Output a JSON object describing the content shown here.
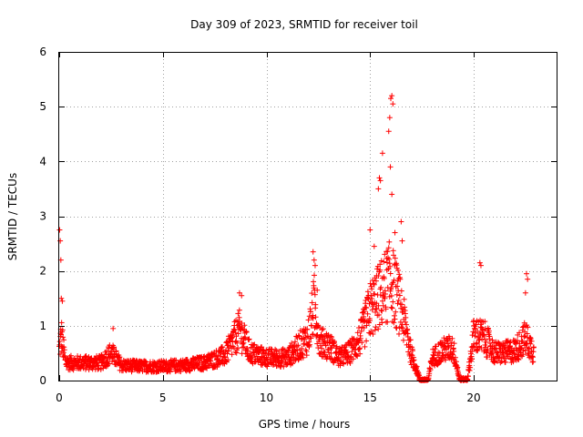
{
  "chart_data": {
    "type": "scatter",
    "title": "Day 309 of 2023, SRMTID for receiver toil",
    "xlabel": "GPS time / hours",
    "ylabel": "SRMTID / TECUs",
    "xlim": [
      0,
      24
    ],
    "ylim": [
      0,
      6
    ],
    "x_ticks": [
      {
        "value": 0,
        "label": "0"
      },
      {
        "value": 5,
        "label": "5"
      },
      {
        "value": 10,
        "label": "10"
      },
      {
        "value": 15,
        "label": "15"
      },
      {
        "value": 20,
        "label": "20"
      }
    ],
    "y_ticks": [
      {
        "value": 0,
        "label": "0"
      },
      {
        "value": 1,
        "label": "1"
      },
      {
        "value": 2,
        "label": "2"
      },
      {
        "value": 3,
        "label": "3"
      },
      {
        "value": 4,
        "label": "4"
      },
      {
        "value": 5,
        "label": "5"
      },
      {
        "value": 6,
        "label": "6"
      }
    ],
    "grid": true,
    "marker": "+",
    "marker_color": "#ff0000",
    "series": [
      {
        "name": "SRMTID",
        "profile": [
          [
            0.0,
            0.6
          ],
          [
            0.1,
            0.9
          ],
          [
            0.3,
            0.35
          ],
          [
            1.0,
            0.35
          ],
          [
            2.0,
            0.35
          ],
          [
            2.5,
            0.55
          ],
          [
            3.0,
            0.3
          ],
          [
            4.0,
            0.28
          ],
          [
            5.0,
            0.28
          ],
          [
            6.0,
            0.3
          ],
          [
            7.0,
            0.35
          ],
          [
            8.0,
            0.5
          ],
          [
            8.7,
            1.0
          ],
          [
            9.2,
            0.55
          ],
          [
            10.0,
            0.45
          ],
          [
            11.0,
            0.45
          ],
          [
            11.5,
            0.65
          ],
          [
            12.0,
            0.85
          ],
          [
            12.3,
            1.5
          ],
          [
            12.6,
            0.75
          ],
          [
            13.0,
            0.7
          ],
          [
            13.5,
            0.45
          ],
          [
            14.0,
            0.55
          ],
          [
            14.5,
            0.8
          ],
          [
            15.0,
            1.4
          ],
          [
            15.5,
            1.7
          ],
          [
            16.0,
            2.0
          ],
          [
            16.5,
            1.4
          ],
          [
            17.0,
            0.5
          ],
          [
            17.4,
            0.03
          ],
          [
            17.8,
            0.03
          ],
          [
            18.0,
            0.45
          ],
          [
            18.5,
            0.6
          ],
          [
            19.0,
            0.65
          ],
          [
            19.3,
            0.05
          ],
          [
            19.7,
            0.05
          ],
          [
            20.0,
            0.9
          ],
          [
            20.5,
            0.85
          ],
          [
            21.0,
            0.55
          ],
          [
            21.5,
            0.55
          ],
          [
            22.0,
            0.6
          ],
          [
            22.5,
            0.85
          ],
          [
            22.9,
            0.55
          ]
        ],
        "spikes": [
          [
            0.02,
            2.75
          ],
          [
            0.05,
            2.55
          ],
          [
            0.08,
            2.2
          ],
          [
            0.1,
            1.5
          ],
          [
            0.15,
            1.45
          ],
          [
            2.6,
            0.95
          ],
          [
            8.7,
            1.6
          ],
          [
            8.8,
            1.55
          ],
          [
            12.25,
            2.35
          ],
          [
            12.3,
            2.2
          ],
          [
            12.35,
            2.1
          ],
          [
            12.45,
            1.65
          ],
          [
            15.0,
            2.75
          ],
          [
            15.2,
            2.45
          ],
          [
            15.4,
            3.5
          ],
          [
            15.45,
            3.7
          ],
          [
            15.5,
            3.65
          ],
          [
            15.6,
            4.15
          ],
          [
            15.9,
            4.55
          ],
          [
            15.95,
            4.8
          ],
          [
            16.0,
            5.15
          ],
          [
            16.05,
            5.2
          ],
          [
            16.1,
            5.05
          ],
          [
            15.98,
            3.9
          ],
          [
            16.05,
            3.4
          ],
          [
            16.2,
            2.7
          ],
          [
            16.3,
            2.05
          ],
          [
            16.5,
            2.9
          ],
          [
            16.55,
            2.55
          ],
          [
            20.3,
            2.15
          ],
          [
            20.35,
            2.1
          ],
          [
            22.55,
            1.95
          ],
          [
            22.6,
            1.85
          ],
          [
            22.5,
            1.6
          ]
        ]
      }
    ]
  }
}
